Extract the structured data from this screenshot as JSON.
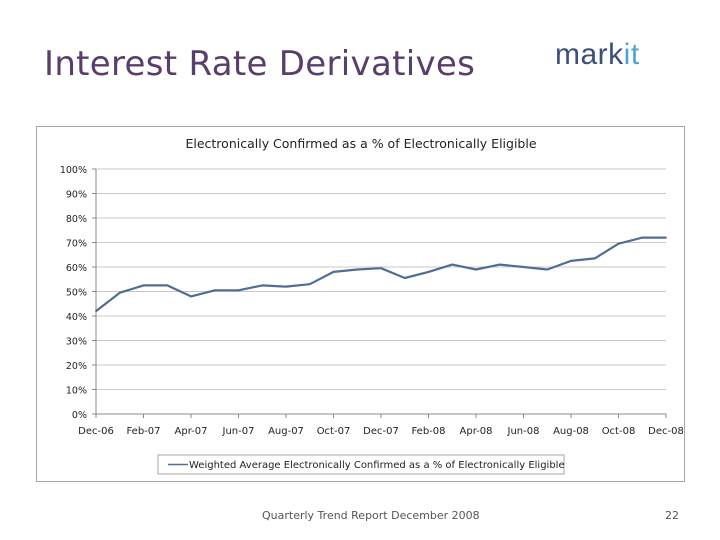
{
  "slide": {
    "title": "Interest Rate Derivatives",
    "logo_mark": "mark",
    "logo_it": "it",
    "footer_text": "Quarterly Trend Report December 2008",
    "page_number": "22"
  },
  "colors": {
    "title": "#5a3d6b",
    "logo_mark": "#3a4f7a",
    "logo_it": "#4fa3d1",
    "series": "#4f6d96",
    "grid": "#c8c8c8"
  },
  "chart_data": {
    "type": "line",
    "title": "Electronically Confirmed as a % of Electronically Eligible",
    "xlabel": "",
    "ylabel": "",
    "ylim": [
      0,
      100
    ],
    "y_ticks": [
      "0%",
      "10%",
      "20%",
      "30%",
      "40%",
      "50%",
      "60%",
      "70%",
      "80%",
      "90%",
      "100%"
    ],
    "x": [
      "Dec-06",
      "Jan-07",
      "Feb-07",
      "Mar-07",
      "Apr-07",
      "May-07",
      "Jun-07",
      "Jul-07",
      "Aug-07",
      "Sep-07",
      "Oct-07",
      "Nov-07",
      "Dec-07",
      "Jan-08",
      "Feb-08",
      "Mar-08",
      "Apr-08",
      "May-08",
      "Jun-08",
      "Jul-08",
      "Aug-08",
      "Sep-08",
      "Oct-08",
      "Nov-08",
      "Dec-08"
    ],
    "x_tick_labels": [
      "Dec-06",
      "Feb-07",
      "Apr-07",
      "Jun-07",
      "Aug-07",
      "Oct-07",
      "Dec-07",
      "Feb-08",
      "Apr-08",
      "Jun-08",
      "Aug-08",
      "Oct-08",
      "Dec-08"
    ],
    "series": [
      {
        "name": "Weighted Average Electronically Confirmed as a % of Electronically Eligible",
        "values": [
          42,
          49.5,
          52.5,
          52.5,
          48,
          50.5,
          50.5,
          52.5,
          52,
          53,
          58,
          59,
          59.5,
          55.5,
          58,
          61,
          59,
          61,
          60,
          59,
          62.5,
          63.5,
          69.5,
          72,
          72
        ]
      }
    ],
    "grid": true,
    "legend_position": "bottom"
  }
}
